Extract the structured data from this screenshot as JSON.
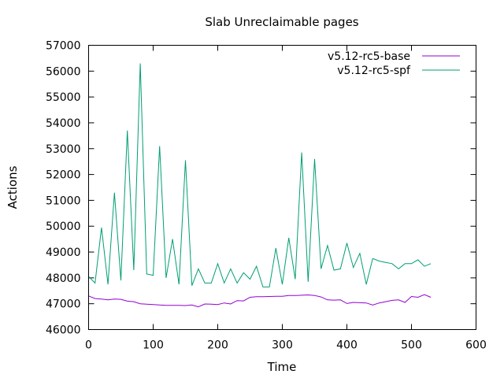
{
  "chart_data": {
    "type": "line",
    "title": "Slab Unreclaimable pages",
    "xlabel": "Time",
    "ylabel": "Actions",
    "xlim": [
      0,
      600
    ],
    "ylim": [
      46000,
      57000
    ],
    "xticks": [
      0,
      100,
      200,
      300,
      400,
      500,
      600
    ],
    "yticks": [
      46000,
      47000,
      48000,
      49000,
      50000,
      51000,
      52000,
      53000,
      54000,
      55000,
      56000,
      57000
    ],
    "grid": false,
    "legend_position": "top-right",
    "series": [
      {
        "name": "v5.12-rc5-base",
        "color": "#9400d3",
        "x": [
          0,
          10,
          20,
          30,
          40,
          50,
          60,
          70,
          80,
          90,
          100,
          110,
          120,
          130,
          140,
          150,
          160,
          170,
          180,
          190,
          200,
          210,
          220,
          230,
          240,
          250,
          260,
          270,
          280,
          290,
          300,
          310,
          320,
          330,
          340,
          350,
          360,
          370,
          380,
          390,
          400,
          410,
          420,
          430,
          440,
          450,
          460,
          470,
          480,
          490,
          500,
          510,
          520,
          530
        ],
        "y": [
          47300,
          47200,
          47180,
          47150,
          47180,
          47170,
          47100,
          47080,
          47000,
          46980,
          46970,
          46950,
          46940,
          46940,
          46940,
          46930,
          46950,
          46880,
          46990,
          46980,
          46970,
          47030,
          46990,
          47120,
          47110,
          47250,
          47270,
          47270,
          47280,
          47290,
          47290,
          47320,
          47320,
          47330,
          47340,
          47320,
          47260,
          47150,
          47140,
          47150,
          47010,
          47050,
          47040,
          47030,
          46950,
          47030,
          47080,
          47130,
          47150,
          47050,
          47280,
          47250,
          47350,
          47250
        ]
      },
      {
        "name": "v5.12-rc5-spf",
        "color": "#009e73",
        "x": [
          0,
          10,
          20,
          30,
          40,
          50,
          60,
          70,
          80,
          90,
          100,
          110,
          120,
          130,
          140,
          150,
          160,
          170,
          180,
          190,
          200,
          210,
          220,
          230,
          240,
          250,
          260,
          270,
          280,
          290,
          300,
          310,
          320,
          330,
          340,
          350,
          360,
          370,
          380,
          390,
          400,
          410,
          420,
          430,
          440,
          450,
          460,
          470,
          480,
          490,
          500,
          510,
          520,
          530
        ],
        "y": [
          48050,
          47800,
          49950,
          47750,
          51300,
          47900,
          53700,
          48300,
          56300,
          48150,
          48100,
          53100,
          48000,
          49500,
          47750,
          52550,
          47700,
          48350,
          47800,
          47800,
          48550,
          47800,
          48350,
          47800,
          48200,
          47950,
          48450,
          47650,
          47650,
          49150,
          47750,
          49550,
          47950,
          52850,
          47850,
          52600,
          48350,
          49250,
          48300,
          48350,
          49350,
          48400,
          48950,
          47750,
          48750,
          48650,
          48600,
          48550,
          48350,
          48550,
          48550,
          48700,
          48450,
          48550
        ]
      }
    ]
  }
}
